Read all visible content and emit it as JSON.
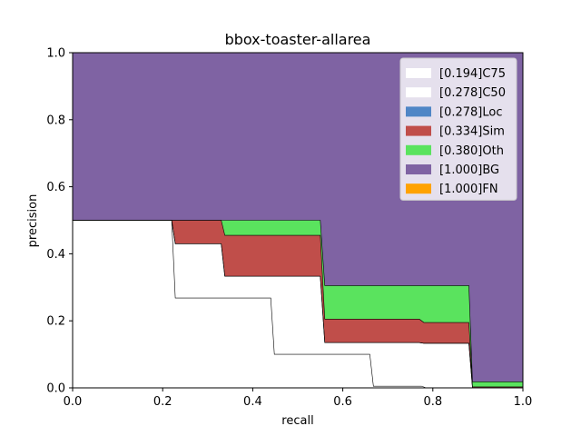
{
  "chart_data": {
    "type": "area",
    "title": "bbox-toaster-allarea",
    "xlabel": "recall",
    "ylabel": "precision",
    "xlim": [
      0,
      1
    ],
    "ylim": [
      0,
      1
    ],
    "x_ticks": [
      "0.0",
      "0.2",
      "0.4",
      "0.6",
      "0.8",
      "1.0"
    ],
    "y_ticks": [
      "0.0",
      "0.2",
      "0.4",
      "0.6",
      "0.8",
      "1.0"
    ],
    "grid": false,
    "legend_position": "top-right",
    "series": [
      {
        "name": "[0.194]C75",
        "color": "#ffffff",
        "points": [
          [
            0,
            0.5
          ],
          [
            0.22,
            0.5
          ],
          [
            0.228,
            0.268
          ],
          [
            0.44,
            0.268
          ],
          [
            0.448,
            0.1
          ],
          [
            0.66,
            0.1
          ],
          [
            0.668,
            0.005
          ],
          [
            0.775,
            0.005
          ],
          [
            0.785,
            0.0
          ],
          [
            1.0,
            0.0
          ]
        ]
      },
      {
        "name": "[0.278]C50",
        "color": "#ffffff",
        "points": [
          [
            0,
            0.5
          ],
          [
            0.22,
            0.5
          ],
          [
            0.228,
            0.43
          ],
          [
            0.33,
            0.43
          ],
          [
            0.338,
            0.333
          ],
          [
            0.55,
            0.333
          ],
          [
            0.56,
            0.135
          ],
          [
            0.77,
            0.135
          ],
          [
            0.78,
            0.133
          ],
          [
            0.88,
            0.133
          ],
          [
            0.888,
            0.0
          ],
          [
            1.0,
            0.0
          ]
        ]
      },
      {
        "name": "[0.278]Loc",
        "color": "#4f86c6",
        "points": [
          [
            0,
            0.5
          ],
          [
            0.22,
            0.5
          ],
          [
            0.228,
            0.43
          ],
          [
            0.33,
            0.43
          ],
          [
            0.338,
            0.333
          ],
          [
            0.55,
            0.333
          ],
          [
            0.56,
            0.135
          ],
          [
            0.77,
            0.135
          ],
          [
            0.78,
            0.133
          ],
          [
            0.88,
            0.133
          ],
          [
            0.888,
            0.0
          ],
          [
            1.0,
            0.0
          ]
        ]
      },
      {
        "name": "[0.334]Sim",
        "color": "#c04e4a",
        "points": [
          [
            0,
            0.5
          ],
          [
            0.22,
            0.5
          ],
          [
            0.33,
            0.5
          ],
          [
            0.338,
            0.455
          ],
          [
            0.55,
            0.455
          ],
          [
            0.56,
            0.205
          ],
          [
            0.77,
            0.205
          ],
          [
            0.78,
            0.195
          ],
          [
            0.88,
            0.195
          ],
          [
            0.888,
            0.003
          ],
          [
            1.0,
            0.003
          ]
        ]
      },
      {
        "name": "[0.380]Oth",
        "color": "#5ae35e",
        "points": [
          [
            0,
            0.5
          ],
          [
            0.55,
            0.5
          ],
          [
            0.56,
            0.305
          ],
          [
            0.88,
            0.305
          ],
          [
            0.888,
            0.018
          ],
          [
            1.0,
            0.018
          ]
        ]
      },
      {
        "name": "[1.000]BG",
        "color": "#7f63a3",
        "points": [
          [
            0,
            1.0
          ],
          [
            1.0,
            1.0
          ]
        ]
      },
      {
        "name": "[1.000]FN",
        "color": "#ffa200",
        "points": [
          [
            0,
            1.0
          ],
          [
            1.0,
            1.0
          ]
        ]
      }
    ]
  }
}
